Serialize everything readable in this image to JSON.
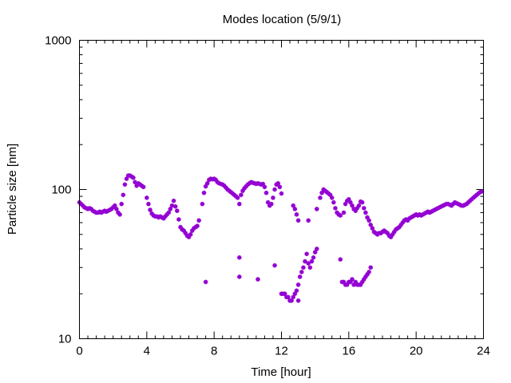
{
  "chart_data": {
    "type": "scatter",
    "title": "Modes location (5/9/1)",
    "xlabel": "Time [hour]",
    "ylabel": "Particle size [nm]",
    "xlim": [
      0,
      24
    ],
    "ylim": [
      10,
      1000
    ],
    "y_scale": "log",
    "x_ticks": [
      0,
      4,
      8,
      12,
      16,
      20,
      24
    ],
    "x_tick_labels": [
      "0",
      "4",
      "8",
      "12",
      "16",
      "20",
      "24"
    ],
    "y_ticks": [
      10,
      100,
      1000
    ],
    "y_tick_labels": [
      "10",
      "100",
      "1000"
    ],
    "grid": false,
    "legend": "none",
    "marker_color": "#9400d3",
    "series": [
      {
        "points": [
          [
            0.0,
            82
          ],
          [
            0.1,
            80
          ],
          [
            0.2,
            78
          ],
          [
            0.3,
            76
          ],
          [
            0.4,
            75
          ],
          [
            0.5,
            74
          ],
          [
            0.6,
            75
          ],
          [
            0.7,
            74
          ],
          [
            0.8,
            72
          ],
          [
            0.9,
            71
          ],
          [
            1.0,
            70
          ],
          [
            1.1,
            70
          ],
          [
            1.2,
            71
          ],
          [
            1.3,
            70
          ],
          [
            1.4,
            71
          ],
          [
            1.5,
            72
          ],
          [
            1.6,
            71
          ],
          [
            1.7,
            72
          ],
          [
            1.8,
            73
          ],
          [
            1.9,
            74
          ],
          [
            2.0,
            76
          ],
          [
            2.1,
            78
          ],
          [
            2.2,
            74
          ],
          [
            2.3,
            70
          ],
          [
            2.4,
            68
          ],
          [
            2.5,
            80
          ],
          [
            2.6,
            92
          ],
          [
            2.7,
            108
          ],
          [
            2.8,
            118
          ],
          [
            2.9,
            124
          ],
          [
            3.0,
            124
          ],
          [
            3.1,
            122
          ],
          [
            3.2,
            120
          ],
          [
            3.3,
            112
          ],
          [
            3.4,
            106
          ],
          [
            3.5,
            110
          ],
          [
            3.6,
            108
          ],
          [
            3.7,
            106
          ],
          [
            3.8,
            104
          ],
          [
            4.0,
            88
          ],
          [
            4.1,
            80
          ],
          [
            4.2,
            73
          ],
          [
            4.3,
            69
          ],
          [
            4.4,
            67
          ],
          [
            4.5,
            66
          ],
          [
            4.6,
            66
          ],
          [
            4.7,
            65
          ],
          [
            4.8,
            66
          ],
          [
            4.9,
            65
          ],
          [
            5.0,
            64
          ],
          [
            5.1,
            66
          ],
          [
            5.2,
            68
          ],
          [
            5.3,
            70
          ],
          [
            5.4,
            74
          ],
          [
            5.5,
            78
          ],
          [
            5.6,
            84
          ],
          [
            5.7,
            77
          ],
          [
            5.8,
            72
          ],
          [
            5.9,
            63
          ],
          [
            6.0,
            56
          ],
          [
            6.1,
            54
          ],
          [
            6.2,
            53
          ],
          [
            6.3,
            51
          ],
          [
            6.4,
            49
          ],
          [
            6.5,
            48
          ],
          [
            6.6,
            50
          ],
          [
            6.7,
            53
          ],
          [
            6.8,
            55
          ],
          [
            6.9,
            56
          ],
          [
            7.0,
            57
          ],
          [
            7.1,
            62
          ],
          [
            7.3,
            80
          ],
          [
            7.4,
            95
          ],
          [
            7.5,
            105
          ],
          [
            7.6,
            110
          ],
          [
            7.7,
            116
          ],
          [
            7.8,
            118
          ],
          [
            7.9,
            117
          ],
          [
            8.0,
            118
          ],
          [
            8.1,
            116
          ],
          [
            8.2,
            112
          ],
          [
            8.3,
            110
          ],
          [
            8.4,
            109
          ],
          [
            8.5,
            108
          ],
          [
            8.6,
            106
          ],
          [
            8.7,
            103
          ],
          [
            8.8,
            100
          ],
          [
            8.9,
            98
          ],
          [
            9.0,
            96
          ],
          [
            9.1,
            94
          ],
          [
            9.2,
            92
          ],
          [
            9.3,
            90
          ],
          [
            9.4,
            88
          ],
          [
            9.5,
            80
          ],
          [
            9.6,
            92
          ],
          [
            9.7,
            98
          ],
          [
            9.8,
            102
          ],
          [
            9.9,
            105
          ],
          [
            10.0,
            108
          ],
          [
            10.1,
            110
          ],
          [
            10.2,
            112
          ],
          [
            10.3,
            111
          ],
          [
            10.4,
            110
          ],
          [
            10.5,
            109
          ],
          [
            10.6,
            110
          ],
          [
            10.7,
            109
          ],
          [
            10.8,
            108
          ],
          [
            10.9,
            109
          ],
          [
            11.0,
            104
          ],
          [
            11.1,
            95
          ],
          [
            11.2,
            82
          ],
          [
            11.3,
            78
          ],
          [
            11.4,
            80
          ],
          [
            11.5,
            88
          ],
          [
            11.6,
            100
          ],
          [
            11.7,
            108
          ],
          [
            11.8,
            110
          ],
          [
            11.9,
            104
          ],
          [
            12.0,
            94
          ],
          [
            12.7,
            78
          ],
          [
            12.8,
            74
          ],
          [
            12.9,
            68
          ],
          [
            13.0,
            62
          ],
          [
            13.6,
            62
          ],
          [
            14.1,
            74
          ],
          [
            14.3,
            88
          ],
          [
            14.4,
            95
          ],
          [
            14.5,
            100
          ],
          [
            14.6,
            98
          ],
          [
            14.7,
            96
          ],
          [
            14.8,
            94
          ],
          [
            14.9,
            92
          ],
          [
            15.0,
            88
          ],
          [
            15.1,
            82
          ],
          [
            15.2,
            75
          ],
          [
            15.3,
            70
          ],
          [
            15.4,
            68
          ],
          [
            15.5,
            67
          ],
          [
            15.7,
            70
          ],
          [
            15.8,
            80
          ],
          [
            15.9,
            84
          ],
          [
            16.0,
            86
          ],
          [
            16.1,
            82
          ],
          [
            16.2,
            78
          ],
          [
            16.3,
            74
          ],
          [
            16.4,
            72
          ],
          [
            16.5,
            75
          ],
          [
            16.6,
            78
          ],
          [
            16.7,
            83
          ],
          [
            16.8,
            82
          ],
          [
            16.9,
            75
          ],
          [
            17.0,
            70
          ],
          [
            17.1,
            65
          ],
          [
            17.2,
            62
          ],
          [
            17.3,
            58
          ],
          [
            17.4,
            55
          ],
          [
            17.5,
            52
          ],
          [
            17.6,
            51
          ],
          [
            17.7,
            50
          ],
          [
            17.8,
            51
          ],
          [
            17.9,
            51
          ],
          [
            18.0,
            52
          ],
          [
            18.1,
            53
          ],
          [
            18.2,
            52
          ],
          [
            18.3,
            51
          ],
          [
            18.4,
            49
          ],
          [
            18.5,
            48
          ],
          [
            18.6,
            50
          ],
          [
            18.7,
            52
          ],
          [
            18.8,
            54
          ],
          [
            18.9,
            55
          ],
          [
            19.0,
            56
          ],
          [
            19.1,
            58
          ],
          [
            19.2,
            60
          ],
          [
            19.3,
            62
          ],
          [
            19.4,
            63
          ],
          [
            19.5,
            62
          ],
          [
            19.6,
            64
          ],
          [
            19.7,
            65
          ],
          [
            19.8,
            66
          ],
          [
            19.9,
            67
          ],
          [
            20.0,
            68
          ],
          [
            20.1,
            67
          ],
          [
            20.2,
            68
          ],
          [
            20.3,
            67
          ],
          [
            20.4,
            68
          ],
          [
            20.5,
            69
          ],
          [
            20.6,
            70
          ],
          [
            20.7,
            71
          ],
          [
            20.8,
            70
          ],
          [
            20.9,
            71
          ],
          [
            21.0,
            72
          ],
          [
            21.1,
            73
          ],
          [
            21.2,
            74
          ],
          [
            21.3,
            75
          ],
          [
            21.4,
            76
          ],
          [
            21.5,
            77
          ],
          [
            21.6,
            78
          ],
          [
            21.7,
            79
          ],
          [
            21.8,
            80
          ],
          [
            21.9,
            80
          ],
          [
            22.0,
            79
          ],
          [
            22.1,
            78
          ],
          [
            22.2,
            80
          ],
          [
            22.3,
            82
          ],
          [
            22.4,
            81
          ],
          [
            22.5,
            80
          ],
          [
            22.6,
            79
          ],
          [
            22.7,
            78
          ],
          [
            22.8,
            78
          ],
          [
            22.9,
            79
          ],
          [
            23.0,
            80
          ],
          [
            23.1,
            82
          ],
          [
            23.2,
            84
          ],
          [
            23.3,
            86
          ],
          [
            23.4,
            88
          ],
          [
            23.5,
            90
          ],
          [
            23.6,
            92
          ],
          [
            23.7,
            94
          ],
          [
            23.8,
            96
          ],
          [
            23.9,
            97
          ],
          [
            7.5,
            24
          ],
          [
            9.5,
            35
          ],
          [
            9.5,
            26
          ],
          [
            10.6,
            25
          ],
          [
            11.6,
            31
          ],
          [
            12.0,
            20
          ],
          [
            12.1,
            20
          ],
          [
            12.2,
            20
          ],
          [
            12.3,
            19
          ],
          [
            12.4,
            19
          ],
          [
            12.5,
            18
          ],
          [
            12.6,
            18
          ],
          [
            12.7,
            19
          ],
          [
            12.8,
            20
          ],
          [
            12.9,
            21
          ],
          [
            13.0,
            18
          ],
          [
            13.0,
            23
          ],
          [
            13.1,
            26
          ],
          [
            13.2,
            28
          ],
          [
            13.3,
            30
          ],
          [
            13.4,
            33
          ],
          [
            13.5,
            37
          ],
          [
            13.6,
            32
          ],
          [
            13.7,
            30
          ],
          [
            13.8,
            33
          ],
          [
            13.9,
            35
          ],
          [
            14.0,
            38
          ],
          [
            14.1,
            40
          ],
          [
            15.5,
            34
          ],
          [
            15.6,
            24
          ],
          [
            15.7,
            24
          ],
          [
            15.8,
            23
          ],
          [
            15.9,
            23
          ],
          [
            16.0,
            24
          ],
          [
            16.1,
            24
          ],
          [
            16.2,
            25
          ],
          [
            16.3,
            23
          ],
          [
            16.4,
            24
          ],
          [
            16.5,
            23
          ],
          [
            16.6,
            23
          ],
          [
            16.7,
            23
          ],
          [
            16.8,
            24
          ],
          [
            16.9,
            25
          ],
          [
            17.0,
            26
          ],
          [
            17.1,
            27
          ],
          [
            17.2,
            28
          ],
          [
            17.3,
            30
          ]
        ]
      }
    ]
  }
}
